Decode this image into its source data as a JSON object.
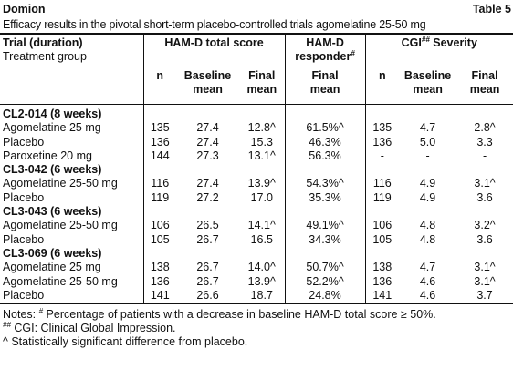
{
  "header": {
    "brand": "Domion",
    "label": "Table 5",
    "title": "Efficacy results in the pivotal short-term placebo-controlled trials agomelatine 25-50 mg"
  },
  "table": {
    "trial_header": [
      "Trial (duration)",
      "Treatment group"
    ],
    "group_headers": [
      {
        "text": "HAM-D total score"
      },
      {
        "text": "HAM-D responder",
        "sup": "#"
      },
      {
        "text": "CGI",
        "sup": "##",
        "after": " Severity"
      }
    ],
    "subheaders": [
      [
        "n"
      ],
      [
        "Baseline",
        "mean"
      ],
      [
        "Final",
        "mean"
      ],
      [
        "Final",
        "mean"
      ],
      [
        "n"
      ],
      [
        "Baseline",
        "mean"
      ],
      [
        "Final",
        "mean"
      ]
    ],
    "groups": [
      {
        "title": "CL2-014 (8 weeks)",
        "rows": [
          [
            "Agomelatine 25 mg",
            "135",
            "27.4",
            "12.8^",
            "61.5%^",
            "135",
            "4.7",
            "2.8^"
          ],
          [
            "Placebo",
            "136",
            "27.4",
            "15.3",
            "46.3%",
            "136",
            "5.0",
            "3.3"
          ],
          [
            "Paroxetine 20 mg",
            "144",
            "27.3",
            "13.1^",
            "56.3%",
            "-",
            "-",
            "-"
          ]
        ]
      },
      {
        "title": "CL3-042 (6 weeks)",
        "rows": [
          [
            "Agomelatine 25-50 mg",
            "116",
            "27.4",
            "13.9^",
            "54.3%^",
            "116",
            "4.9",
            "3.1^"
          ],
          [
            "Placebo",
            "119",
            "27.2",
            "17.0",
            "35.3%",
            "119",
            "4.9",
            "3.6"
          ]
        ]
      },
      {
        "title": "CL3-043 (6 weeks)",
        "rows": [
          [
            "Agomelatine 25-50 mg",
            "106",
            "26.5",
            "14.1^",
            "49.1%^",
            "106",
            "4.8",
            "3.2^"
          ],
          [
            "Placebo",
            "105",
            "26.7",
            "16.5",
            "34.3%",
            "105",
            "4.8",
            "3.6"
          ]
        ]
      },
      {
        "title": "CL3-069 (6 weeks)",
        "rows": [
          [
            "Agomelatine 25 mg",
            "138",
            "26.7",
            "14.0^",
            "50.7%^",
            "138",
            "4.7",
            "3.1^"
          ],
          [
            "Agomelatine 25-50 mg",
            "136",
            "26.7",
            "13.9^",
            "52.2%^",
            "136",
            "4.6",
            "3.1^"
          ],
          [
            "Placebo",
            "141",
            "26.6",
            "18.7",
            "24.8%",
            "141",
            "4.6",
            "3.7"
          ]
        ]
      }
    ]
  },
  "notes": [
    {
      "prefix": "Notes: ",
      "sup": "#",
      "text": " Percentage of patients with a decrease in baseline HAM-D total score ≥ 50%."
    },
    {
      "sup": "##",
      "text": " CGI: Clinical Global Impression."
    },
    {
      "text": "^ Statistically significant difference from placebo."
    }
  ]
}
